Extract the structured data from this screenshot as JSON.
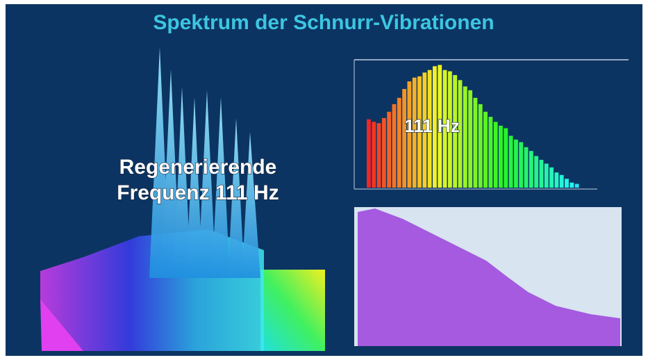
{
  "title": "Spektrum der Schnurr-Vibrationen",
  "overlay": {
    "line1": "Regenerierende",
    "line2": "Frequenz 111 Hz"
  },
  "spectrum": {
    "label": "111 Hz",
    "levels": [
      54,
      52,
      51,
      55,
      60,
      66,
      71,
      78,
      84,
      87,
      88,
      91,
      93,
      96,
      97,
      93,
      92,
      89,
      85,
      80,
      77,
      71,
      66,
      60,
      56,
      52,
      49,
      47,
      41,
      38,
      36,
      32,
      29,
      25,
      22,
      19,
      16,
      12,
      10,
      7,
      4,
      3
    ],
    "ylim": [
      0,
      100
    ]
  }
}
